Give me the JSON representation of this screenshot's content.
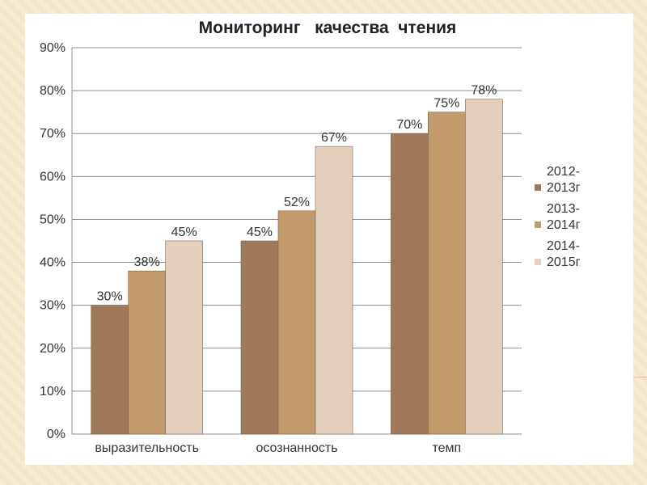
{
  "chart_data": {
    "type": "bar",
    "title": "Мониторинг   качества  чтения",
    "categories": [
      "выразительность",
      "осознанность",
      "темп"
    ],
    "series": [
      {
        "name": "2012-2013г",
        "name_lines": [
          "2012-",
          "2013г"
        ],
        "color": "#a0785a",
        "values": [
          30,
          45,
          70
        ]
      },
      {
        "name": "2013-2014г",
        "name_lines": [
          "2013-",
          "2014г"
        ],
        "color": "#c39a6c",
        "values": [
          38,
          52,
          75
        ]
      },
      {
        "name": "2014-2015г",
        "name_lines": [
          "2014-",
          "2015г"
        ],
        "color": "#e3cfbc",
        "values": [
          45,
          67,
          78
        ]
      }
    ],
    "value_suffix": "%",
    "ylim": [
      0,
      90
    ],
    "yticks": [
      0,
      10,
      20,
      30,
      40,
      50,
      60,
      70,
      80,
      90
    ],
    "ytick_labels": [
      "0%",
      "10%",
      "20%",
      "30%",
      "40%",
      "50%",
      "60%",
      "70%",
      "80%",
      "90%"
    ],
    "xlabel": "",
    "ylabel": "",
    "grid": true,
    "legend_position": "right",
    "data_labels": true
  },
  "colors": {
    "background": "#f7edd6",
    "card": "#ffffff",
    "grid": "#8c8c8c",
    "bar_edge": "#7a6650"
  }
}
